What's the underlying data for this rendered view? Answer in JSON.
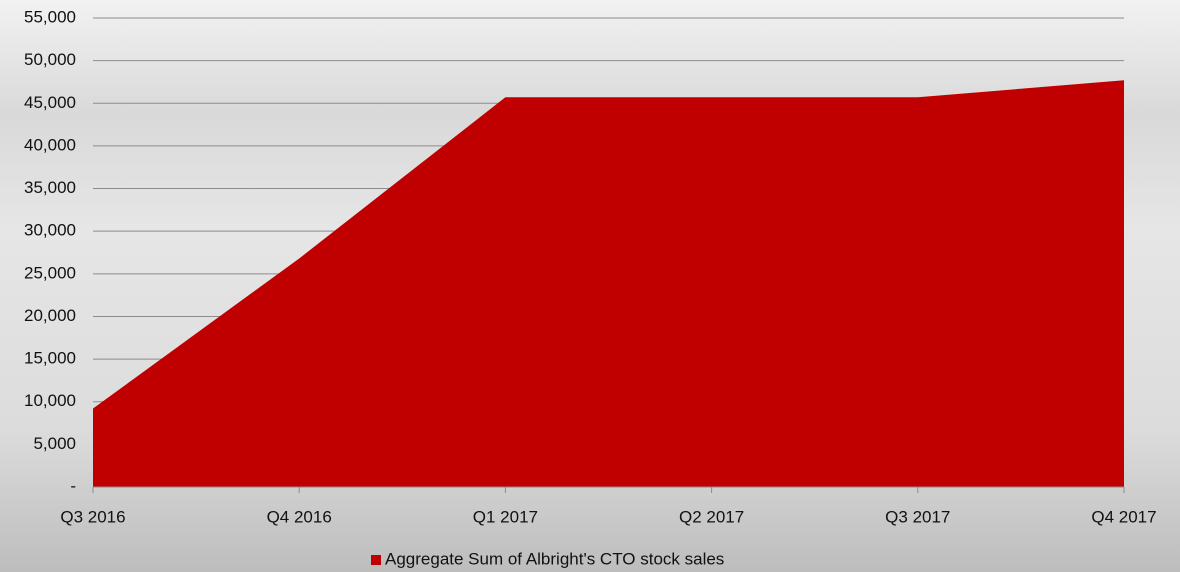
{
  "chart_data": {
    "type": "area",
    "categories": [
      "Q3 2016",
      "Q4 2016",
      "Q1 2017",
      "Q2 2017",
      "Q3 2017",
      "Q4 2017"
    ],
    "series": [
      {
        "name": "Aggregate Sum of Albright's CTO stock sales",
        "color": "#c00000",
        "values": [
          9200,
          26800,
          45700,
          45700,
          45700,
          47700
        ]
      }
    ],
    "ylim": [
      0,
      55000
    ],
    "yticks": [
      {
        "value": 0,
        "label": "-"
      },
      {
        "value": 5000,
        "label": "5,000"
      },
      {
        "value": 10000,
        "label": "10,000"
      },
      {
        "value": 15000,
        "label": "15,000"
      },
      {
        "value": 20000,
        "label": "20,000"
      },
      {
        "value": 25000,
        "label": "25,000"
      },
      {
        "value": 30000,
        "label": "30,000"
      },
      {
        "value": 35000,
        "label": "35,000"
      },
      {
        "value": 40000,
        "label": "40,000"
      },
      {
        "value": 45000,
        "label": "45,000"
      },
      {
        "value": 50000,
        "label": "50,000"
      },
      {
        "value": 55000,
        "label": "55,000"
      }
    ],
    "grid": true,
    "legend": "bottom"
  }
}
